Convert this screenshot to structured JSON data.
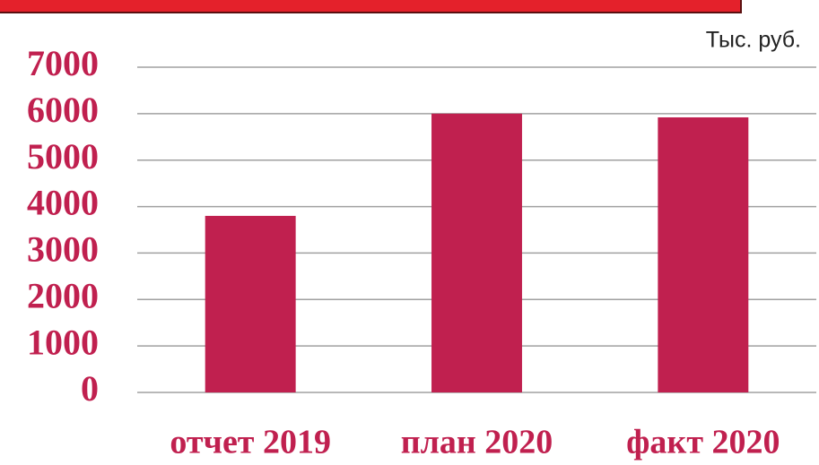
{
  "chart_data": {
    "type": "bar",
    "subtitle": "Тыс. руб.",
    "categories": [
      "отчет 2019",
      "план 2020",
      "факт 2020"
    ],
    "values": [
      3800,
      6000,
      5920
    ],
    "color": "#c0204f",
    "ylim": [
      0,
      7000
    ],
    "yticks": [
      0,
      1000,
      2000,
      3000,
      4000,
      5000,
      6000,
      7000
    ],
    "grid": true
  }
}
